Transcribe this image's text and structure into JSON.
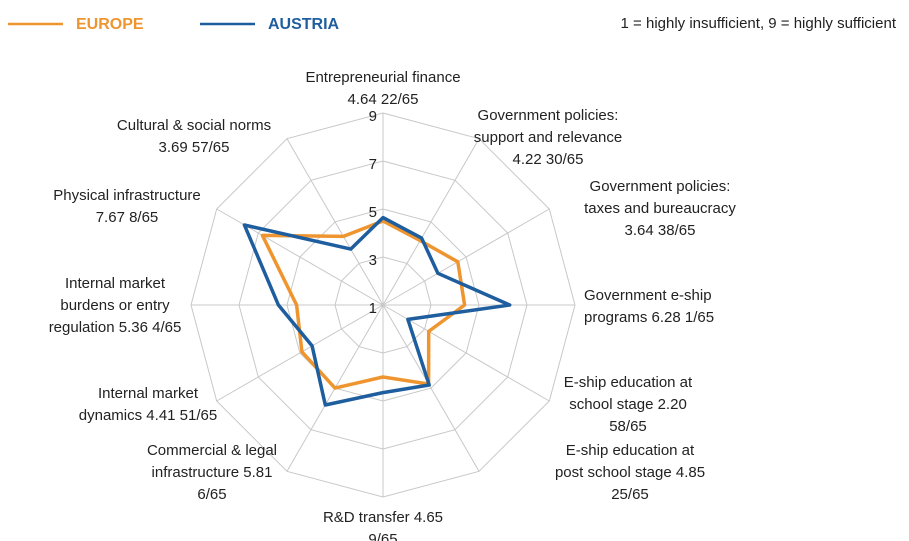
{
  "chart_data": {
    "type": "radar",
    "note": "1 = highly insufficient,  9 = highly sufficient",
    "categories": [
      [
        "Entrepreneurial finance",
        "4.64 22/65"
      ],
      [
        "Government policies:",
        "support and relevance",
        "4.22 30/65"
      ],
      [
        "Government policies:",
        "taxes and bureaucracy",
        "3.64 38/65"
      ],
      [
        "Government e-ship",
        "programs 6.28 1/65"
      ],
      [
        "E-ship education at",
        "school stage 2.20",
        "58/65"
      ],
      [
        "E-ship education at",
        "post school stage 4.85",
        "25/65"
      ],
      [
        "R&D transfer 4.65",
        "9/65"
      ],
      [
        "Commercial & legal",
        "infrastructure 5.81",
        "6/65"
      ],
      [
        "Internal market",
        "dynamics 4.41 51/65"
      ],
      [
        "Internal market",
        "burdens or entry",
        "regulation 5.36 4/65"
      ],
      [
        "Physical infrastructure",
        "7.67 8/65"
      ],
      [
        "Cultural & social norms",
        "3.69 57/65"
      ]
    ],
    "series": [
      {
        "name": "EUROPE",
        "color": "#ef9530",
        "values": [
          4.5,
          4.1,
          4.6,
          4.4,
          3.2,
          4.8,
          4.0,
          5.0,
          4.9,
          4.6,
          6.8,
          4.3
        ]
      },
      {
        "name": "AUSTRIA",
        "color": "#1f5e9e",
        "values": [
          4.64,
          4.22,
          3.64,
          6.28,
          2.2,
          4.85,
          4.65,
          5.81,
          4.41,
          5.36,
          7.67,
          3.69
        ]
      }
    ],
    "rlim": [
      1,
      9
    ],
    "rticks": [
      1,
      3,
      5,
      7,
      9
    ],
    "grid": true
  }
}
